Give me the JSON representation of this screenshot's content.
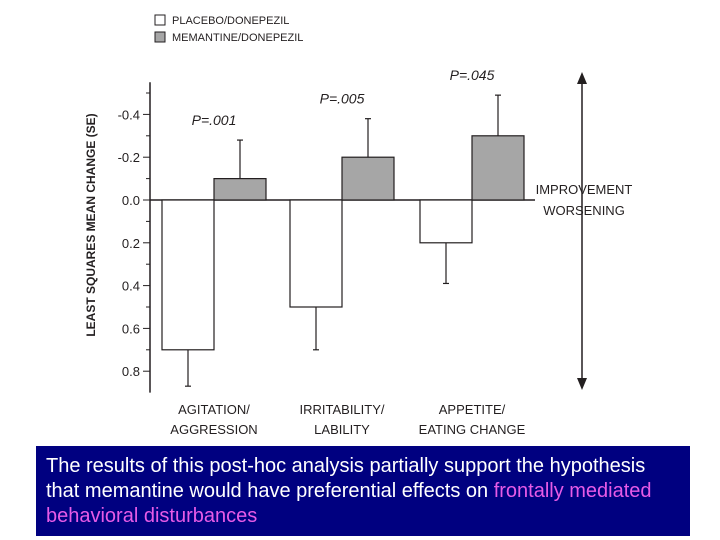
{
  "chart_data": {
    "type": "bar",
    "categories": [
      {
        "line1": "AGITATION/",
        "line2": "AGGRESSION"
      },
      {
        "line1": "IRRITABILITY/",
        "line2": "LABILITY"
      },
      {
        "line1": "APPETITE/",
        "line2": "EATING CHANGE"
      }
    ],
    "series": [
      {
        "name": "PLACEBO/DONEPEZIL",
        "color": "#ffffff",
        "values": [
          0.7,
          0.5,
          0.2
        ],
        "se": [
          0.17,
          0.2,
          0.19
        ]
      },
      {
        "name": "MEMANTINE/DONEPEZIL",
        "color": "#a6a6a6",
        "values": [
          -0.1,
          -0.2,
          -0.3
        ],
        "se": [
          0.18,
          0.18,
          0.19
        ]
      }
    ],
    "p_values": [
      "P=.001",
      "P=.005",
      "P=.045"
    ],
    "ylabel": "LEAST SQUARES MEAN CHANGE (SE)",
    "yticks": [
      "-0.4",
      "-0.2",
      "0.0",
      "0.2",
      "0.4",
      "0.6",
      "0.8"
    ],
    "ylim": [
      -0.55,
      0.9
    ],
    "y_inverted": true,
    "legend_position": "top-left",
    "direction_labels": {
      "up": "IMPROVEMENT",
      "down": "WORSENING"
    }
  },
  "caption": {
    "part1": "The results of this post-hoc analysis partially support the hypothesis that memantine would have preferential effects on ",
    "highlight": "frontally mediated behavioral disturbances",
    "highlight_color": "#e75be7",
    "background_color": "#000080"
  }
}
